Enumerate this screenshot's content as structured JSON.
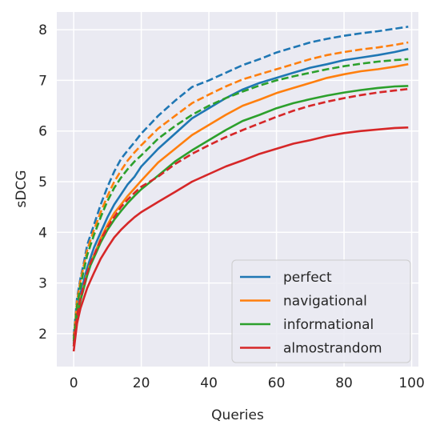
{
  "chart_data": {
    "type": "line",
    "xlabel": "Queries",
    "ylabel": "sDCG",
    "xlim": [
      -5,
      102
    ],
    "ylim": [
      1.35,
      8.35
    ],
    "xticks": [
      0,
      20,
      40,
      60,
      80,
      100
    ],
    "yticks": [
      2,
      3,
      4,
      5,
      6,
      7,
      8
    ],
    "grid": true,
    "legend_position": "bottom-right",
    "x": [
      0,
      1,
      2,
      3,
      4,
      5,
      6,
      8,
      10,
      12,
      14,
      16,
      18,
      20,
      25,
      30,
      35,
      40,
      45,
      50,
      55,
      60,
      65,
      70,
      75,
      80,
      85,
      90,
      95,
      99
    ],
    "series": [
      {
        "name": "perfect",
        "color": "#1f77b4",
        "dash": "solid",
        "values": [
          1.8,
          2.45,
          2.8,
          3.05,
          3.3,
          3.5,
          3.7,
          4.0,
          4.3,
          4.55,
          4.75,
          4.95,
          5.1,
          5.3,
          5.65,
          5.95,
          6.25,
          6.45,
          6.65,
          6.82,
          6.95,
          7.05,
          7.15,
          7.25,
          7.32,
          7.4,
          7.45,
          7.5,
          7.56,
          7.62
        ]
      },
      {
        "name": "",
        "color": "#1f77b4",
        "dash": "dashed",
        "values": [
          1.95,
          2.7,
          3.1,
          3.4,
          3.75,
          3.95,
          4.15,
          4.55,
          4.9,
          5.2,
          5.45,
          5.62,
          5.78,
          5.95,
          6.3,
          6.6,
          6.87,
          7.0,
          7.15,
          7.3,
          7.42,
          7.55,
          7.65,
          7.75,
          7.82,
          7.88,
          7.93,
          7.97,
          8.02,
          8.06
        ]
      },
      {
        "name": "navigational",
        "color": "#ff7f0e",
        "dash": "solid",
        "values": [
          1.75,
          2.35,
          2.7,
          2.95,
          3.2,
          3.4,
          3.55,
          3.88,
          4.15,
          4.38,
          4.55,
          4.72,
          4.87,
          5.02,
          5.38,
          5.65,
          5.92,
          6.12,
          6.32,
          6.5,
          6.62,
          6.75,
          6.85,
          6.95,
          7.05,
          7.12,
          7.18,
          7.22,
          7.27,
          7.32
        ]
      },
      {
        "name": "",
        "color": "#ff7f0e",
        "dash": "dashed",
        "values": [
          1.9,
          2.65,
          3.05,
          3.35,
          3.65,
          3.85,
          4.05,
          4.4,
          4.72,
          5.0,
          5.22,
          5.42,
          5.58,
          5.72,
          6.05,
          6.3,
          6.55,
          6.72,
          6.88,
          7.02,
          7.12,
          7.22,
          7.32,
          7.42,
          7.5,
          7.56,
          7.61,
          7.65,
          7.7,
          7.75
        ]
      },
      {
        "name": "informational",
        "color": "#2ca02c",
        "dash": "solid",
        "values": [
          1.75,
          2.3,
          2.65,
          2.9,
          3.15,
          3.35,
          3.5,
          3.8,
          4.05,
          4.25,
          4.42,
          4.58,
          4.72,
          4.85,
          5.12,
          5.4,
          5.62,
          5.82,
          6.02,
          6.2,
          6.32,
          6.45,
          6.55,
          6.63,
          6.7,
          6.76,
          6.81,
          6.85,
          6.88,
          6.89
        ]
      },
      {
        "name": "",
        "color": "#2ca02c",
        "dash": "dashed",
        "values": [
          1.85,
          2.55,
          2.95,
          3.25,
          3.55,
          3.75,
          3.95,
          4.3,
          4.62,
          4.88,
          5.08,
          5.25,
          5.4,
          5.52,
          5.85,
          6.1,
          6.32,
          6.5,
          6.65,
          6.78,
          6.9,
          7.0,
          7.08,
          7.15,
          7.22,
          7.28,
          7.33,
          7.37,
          7.4,
          7.42
        ]
      },
      {
        "name": "almostrandom",
        "color": "#d62728",
        "dash": "solid",
        "values": [
          1.65,
          2.2,
          2.5,
          2.7,
          2.9,
          3.05,
          3.2,
          3.48,
          3.7,
          3.9,
          4.05,
          4.18,
          4.3,
          4.4,
          4.6,
          4.8,
          5.0,
          5.15,
          5.3,
          5.42,
          5.55,
          5.65,
          5.75,
          5.82,
          5.9,
          5.96,
          6.0,
          6.03,
          6.06,
          6.07
        ]
      },
      {
        "name": "",
        "color": "#d62728",
        "dash": "dashed",
        "values": [
          1.75,
          2.35,
          2.7,
          2.95,
          3.2,
          3.4,
          3.55,
          3.85,
          4.1,
          4.3,
          4.5,
          4.65,
          4.78,
          4.9,
          5.1,
          5.35,
          5.55,
          5.72,
          5.88,
          6.02,
          6.15,
          6.28,
          6.4,
          6.5,
          6.58,
          6.65,
          6.71,
          6.76,
          6.8,
          6.83
        ]
      }
    ]
  }
}
